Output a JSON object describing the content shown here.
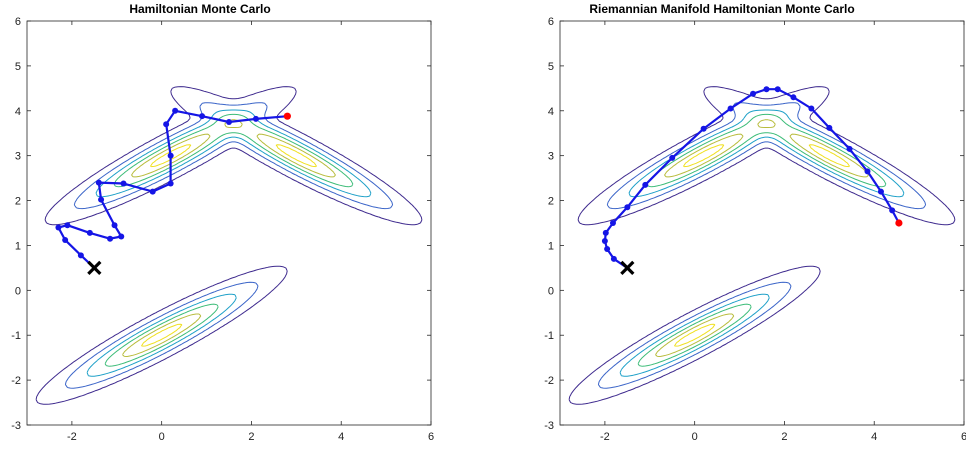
{
  "chart_data": [
    {
      "type": "line",
      "title": "Hamiltonian Monte Carlo",
      "xlabel": "",
      "ylabel": "",
      "xlim": [
        -3,
        6
      ],
      "ylim": [
        -3,
        6
      ],
      "xticks": [
        -2,
        0,
        2,
        4,
        6
      ],
      "yticks": [
        -3,
        -2,
        -1,
        0,
        1,
        2,
        3,
        4,
        5,
        6
      ],
      "grid": false,
      "contour_levels": [
        {
          "level": 1,
          "color": "#3e2a8e"
        },
        {
          "level": 2,
          "color": "#3a64c8"
        },
        {
          "level": 3,
          "color": "#1ea0c8"
        },
        {
          "level": 4,
          "color": "#3cbc78"
        },
        {
          "level": 5,
          "color": "#b8bc3c"
        },
        {
          "level": 6,
          "color": "#f0e020"
        }
      ],
      "start_marker": {
        "x": -1.5,
        "y": 0.5,
        "color": "#000000"
      },
      "end_marker_color": "#ff0000",
      "trajectory_color": "#1515e6",
      "trajectory": [
        [
          -1.5,
          0.5
        ],
        [
          -1.8,
          0.78
        ],
        [
          -2.15,
          1.12
        ],
        [
          -2.3,
          1.4
        ],
        [
          -2.1,
          1.45
        ],
        [
          -1.6,
          1.28
        ],
        [
          -1.15,
          1.15
        ],
        [
          -0.9,
          1.2
        ],
        [
          -1.05,
          1.45
        ],
        [
          -1.35,
          2.02
        ],
        [
          -1.4,
          2.4
        ],
        [
          -0.85,
          2.38
        ],
        [
          -0.2,
          2.2
        ],
        [
          0.2,
          2.38
        ],
        [
          0.2,
          3.0
        ],
        [
          0.1,
          3.7
        ],
        [
          0.3,
          4.0
        ],
        [
          0.9,
          3.88
        ],
        [
          1.5,
          3.75
        ],
        [
          2.1,
          3.82
        ],
        [
          2.8,
          3.88
        ]
      ]
    },
    {
      "type": "line",
      "title": "Riemannian Manifold Hamiltonian Monte Carlo",
      "xlabel": "",
      "ylabel": "",
      "xlim": [
        -3,
        6
      ],
      "ylim": [
        -3,
        6
      ],
      "xticks": [
        -2,
        0,
        2,
        4,
        6
      ],
      "yticks": [
        -3,
        -2,
        -1,
        0,
        1,
        2,
        3,
        4,
        5,
        6
      ],
      "grid": false,
      "contour_levels": [
        {
          "level": 1,
          "color": "#3e2a8e"
        },
        {
          "level": 2,
          "color": "#3a64c8"
        },
        {
          "level": 3,
          "color": "#1ea0c8"
        },
        {
          "level": 4,
          "color": "#3cbc78"
        },
        {
          "level": 5,
          "color": "#b8bc3c"
        },
        {
          "level": 6,
          "color": "#f0e020"
        }
      ],
      "start_marker": {
        "x": -1.5,
        "y": 0.5,
        "color": "#000000"
      },
      "end_marker_color": "#ff0000",
      "trajectory_color": "#1515e6",
      "trajectory": [
        [
          -1.5,
          0.5
        ],
        [
          -1.8,
          0.7
        ],
        [
          -1.95,
          0.92
        ],
        [
          -2.0,
          1.1
        ],
        [
          -1.98,
          1.28
        ],
        [
          -1.82,
          1.5
        ],
        [
          -1.5,
          1.85
        ],
        [
          -1.1,
          2.35
        ],
        [
          -0.5,
          2.95
        ],
        [
          0.2,
          3.6
        ],
        [
          0.8,
          4.05
        ],
        [
          1.3,
          4.38
        ],
        [
          1.6,
          4.48
        ],
        [
          1.85,
          4.48
        ],
        [
          2.2,
          4.3
        ],
        [
          2.6,
          4.05
        ],
        [
          3.0,
          3.62
        ],
        [
          3.45,
          3.15
        ],
        [
          3.85,
          2.65
        ],
        [
          4.15,
          2.2
        ],
        [
          4.4,
          1.78
        ],
        [
          4.55,
          1.5
        ]
      ]
    }
  ]
}
